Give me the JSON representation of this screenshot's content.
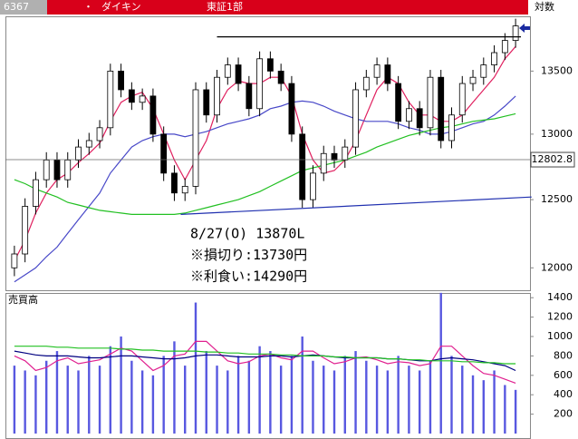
{
  "header": {
    "code": "6367",
    "bullet": "・",
    "name": "ダイキン",
    "market": "東証1部",
    "scale_mode": "対数"
  },
  "chart_data": [
    {
      "type": "candlestick",
      "log_scale": true,
      "ylim": [
        11840,
        13950
      ],
      "yticks": [
        12000,
        12500,
        13000,
        13500
      ],
      "up_color": "#ffffff",
      "down_color": "#000000",
      "open": [
        12000,
        12100,
        12450,
        12650,
        12800,
        12650,
        12800,
        12900,
        12950,
        13050,
        13500,
        13350,
        13250,
        13300,
        13000,
        12700,
        12550,
        12600,
        13350,
        13150,
        13450,
        13550,
        13400,
        13200,
        13600,
        13500,
        13400,
        13000,
        12500,
        12700,
        12850,
        12800,
        12900,
        13350,
        13450,
        13550,
        13400,
        13100,
        13200,
        13050,
        13450,
        12950,
        13150,
        13400,
        13450,
        13550,
        13650,
        13750
      ],
      "high": [
        12160,
        12510,
        12710,
        12860,
        12860,
        12860,
        12960,
        13010,
        13110,
        13560,
        13560,
        13410,
        13360,
        13360,
        13060,
        12760,
        12660,
        13410,
        13410,
        13510,
        13610,
        13610,
        13460,
        13660,
        13660,
        13560,
        13460,
        13060,
        12760,
        12910,
        12910,
        12960,
        13410,
        13510,
        13610,
        13610,
        13460,
        13260,
        13260,
        13510,
        13510,
        13210,
        13460,
        13510,
        13610,
        13710,
        13810,
        13930
      ],
      "low": [
        11940,
        12040,
        12390,
        12590,
        12590,
        12590,
        12740,
        12840,
        12890,
        12990,
        13290,
        13190,
        13190,
        12940,
        12640,
        12490,
        12490,
        12540,
        13090,
        13090,
        13390,
        13340,
        13140,
        13140,
        13440,
        13340,
        12940,
        12440,
        12440,
        12640,
        12740,
        12740,
        12840,
        13290,
        13390,
        13340,
        13040,
        13040,
        12990,
        12990,
        12890,
        12890,
        13090,
        13340,
        13390,
        13490,
        13590,
        13690
      ],
      "close": [
        12100,
        12450,
        12650,
        12800,
        12650,
        12800,
        12900,
        12950,
        13050,
        13500,
        13350,
        13250,
        13300,
        13000,
        12700,
        12550,
        12600,
        13350,
        13150,
        13450,
        13550,
        13400,
        13200,
        13600,
        13500,
        13400,
        13000,
        12500,
        12700,
        12850,
        12800,
        12900,
        13350,
        13450,
        13550,
        13400,
        13100,
        13200,
        13050,
        13450,
        12950,
        13150,
        13400,
        13450,
        13550,
        13650,
        13750,
        13870
      ],
      "series": [
        {
          "color": "#e0205f",
          "values": [
            12050,
            12200,
            12400,
            12550,
            12650,
            12700,
            12780,
            12850,
            12930,
            13100,
            13250,
            13300,
            13330,
            13200,
            13000,
            12800,
            12650,
            12800,
            12950,
            13200,
            13350,
            13420,
            13400,
            13400,
            13450,
            13450,
            13300,
            13000,
            12800,
            12700,
            12720,
            12800,
            12950,
            13150,
            13350,
            13450,
            13400,
            13250,
            13150,
            13150,
            13100,
            13100,
            13150,
            13250,
            13350,
            13450,
            13600,
            13700
          ]
        },
        {
          "color": "#4848c8",
          "values": [
            11900,
            11950,
            12000,
            12080,
            12150,
            12250,
            12350,
            12450,
            12550,
            12700,
            12800,
            12900,
            12950,
            12980,
            13000,
            13000,
            12980,
            13000,
            13020,
            13050,
            13080,
            13100,
            13120,
            13150,
            13200,
            13220,
            13250,
            13260,
            13250,
            13220,
            13180,
            13150,
            13120,
            13100,
            13100,
            13100,
            13080,
            13050,
            13030,
            13000,
            13000,
            13020,
            13050,
            13080,
            13100,
            13150,
            13220,
            13300
          ]
        },
        {
          "color": "#22c022",
          "values": [
            12650,
            12620,
            12580,
            12550,
            12520,
            12480,
            12460,
            12440,
            12420,
            12410,
            12400,
            12390,
            12390,
            12390,
            12390,
            12390,
            12400,
            12420,
            12440,
            12460,
            12480,
            12500,
            12530,
            12560,
            12600,
            12640,
            12680,
            12720,
            12740,
            12760,
            12780,
            12800,
            12830,
            12860,
            12900,
            12930,
            12960,
            12990,
            13010,
            13030,
            13050,
            13060,
            13080,
            13100,
            13110,
            13120,
            13140,
            13160
          ]
        }
      ],
      "lines": [
        {
          "color": "#000000",
          "x": [
            19,
            47.5
          ],
          "values": [
            13780,
            13780
          ]
        },
        {
          "color": "#2030b0",
          "x": [
            15.6,
            48.5
          ],
          "values": [
            12390,
            12520
          ]
        }
      ],
      "crosshair": 12802.8,
      "annotations": [
        "8/27(O) 13870L",
        "※損切り:13730円",
        "※利食い:14290円"
      ],
      "annotation_color": "#1a1ad0"
    },
    {
      "type": "bar",
      "title": "売買高",
      "ylim": [
        0,
        1430
      ],
      "yticks": [
        200,
        400,
        600,
        800,
        1000,
        1200,
        1400
      ],
      "color": "#5858e0",
      "values": [
        700,
        650,
        600,
        750,
        850,
        700,
        650,
        800,
        700,
        900,
        1000,
        750,
        650,
        600,
        800,
        950,
        700,
        1350,
        850,
        700,
        650,
        800,
        750,
        900,
        850,
        700,
        800,
        1000,
        750,
        700,
        650,
        800,
        850,
        750,
        700,
        650,
        800,
        700,
        650,
        750,
        1450,
        800,
        700,
        600,
        550,
        650,
        500,
        450
      ],
      "series": [
        {
          "color": "#e0208f",
          "values": [
            800,
            750,
            650,
            680,
            750,
            780,
            720,
            740,
            760,
            820,
            880,
            850,
            750,
            650,
            700,
            800,
            820,
            950,
            950,
            850,
            750,
            720,
            740,
            800,
            820,
            780,
            760,
            850,
            850,
            780,
            720,
            740,
            780,
            790,
            760,
            720,
            740,
            730,
            700,
            720,
            900,
            900,
            800,
            700,
            620,
            600,
            560,
            520
          ]
        },
        {
          "color": "#000080",
          "values": [
            850,
            830,
            810,
            800,
            800,
            800,
            790,
            780,
            780,
            790,
            800,
            800,
            790,
            780,
            770,
            770,
            780,
            800,
            810,
            810,
            800,
            790,
            790,
            790,
            800,
            800,
            790,
            800,
            810,
            800,
            790,
            780,
            780,
            780,
            780,
            770,
            770,
            760,
            750,
            750,
            770,
            780,
            770,
            760,
            740,
            720,
            700,
            650
          ]
        },
        {
          "color": "#22c022",
          "values": [
            900,
            900,
            900,
            900,
            890,
            890,
            880,
            880,
            880,
            880,
            870,
            870,
            860,
            860,
            850,
            850,
            850,
            850,
            840,
            840,
            830,
            830,
            820,
            820,
            820,
            810,
            810,
            800,
            800,
            800,
            790,
            790,
            780,
            780,
            780,
            770,
            770,
            760,
            760,
            750,
            750,
            750,
            740,
            740,
            730,
            730,
            720,
            720
          ]
        }
      ]
    }
  ]
}
